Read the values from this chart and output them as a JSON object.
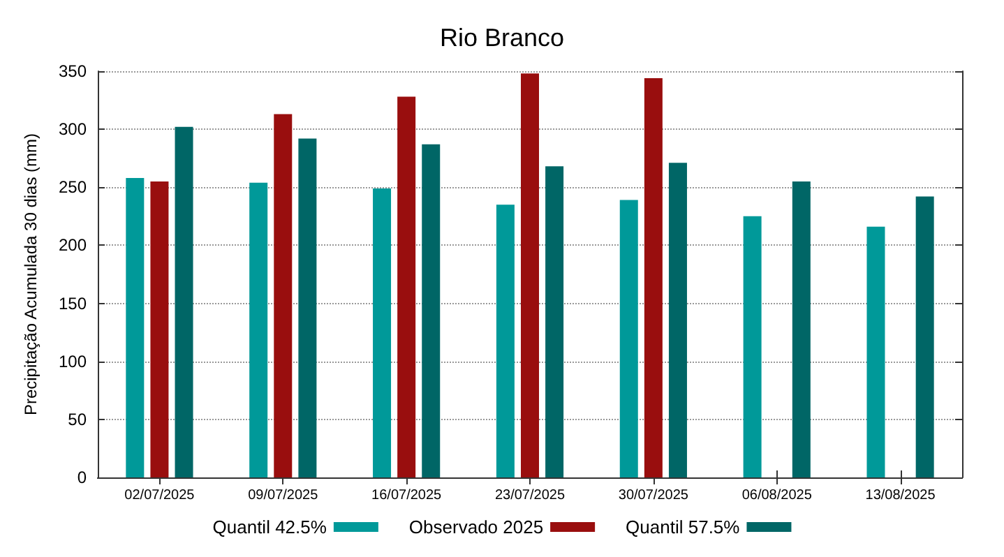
{
  "chart_data": {
    "type": "bar",
    "title": "Rio Branco",
    "ylabel": "Precipitação Acumulada 30 dias (mm)",
    "categories": [
      "02/07/2025",
      "09/07/2025",
      "16/07/2025",
      "23/07/2025",
      "30/07/2025",
      "06/08/2025",
      "13/08/2025"
    ],
    "series": [
      {
        "name": "Quantil 42.5%",
        "color": "#009999",
        "values": [
          258,
          254,
          249,
          235,
          239,
          225,
          216
        ]
      },
      {
        "name": "Observado 2025",
        "color": "#990e0e",
        "values": [
          255,
          313,
          328,
          348,
          344,
          null,
          null
        ]
      },
      {
        "name": "Quantil 57.5%",
        "color": "#006666",
        "values": [
          302,
          292,
          287,
          268,
          271,
          255,
          242
        ]
      }
    ],
    "ylim": [
      0,
      350
    ],
    "yticks": [
      0,
      50,
      100,
      150,
      200,
      250,
      300,
      350
    ],
    "grid": "y",
    "legend": "bottom"
  }
}
